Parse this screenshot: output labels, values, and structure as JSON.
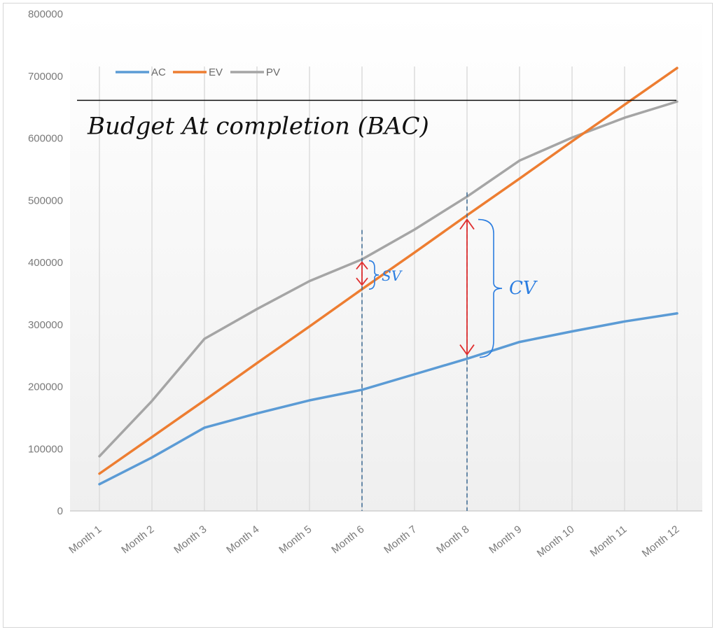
{
  "chart_data": {
    "type": "line",
    "title": "",
    "xlabel": "",
    "ylabel": "",
    "ylim": [
      0,
      800000
    ],
    "yticks": [
      0,
      100000,
      200000,
      300000,
      400000,
      500000,
      600000,
      700000,
      800000
    ],
    "categories": [
      "Month 1",
      "Month 2",
      "Month 3",
      "Month 4",
      "Month 5",
      "Month 6",
      "Month 7",
      "Month 8",
      "Month 9",
      "Month 10",
      "Month 11",
      "Month 12"
    ],
    "series": [
      {
        "name": "AC",
        "color": "#5b9bd5",
        "values": [
          43000,
          86000,
          134000,
          157000,
          178000,
          195000,
          220000,
          245000,
          272000,
          289000,
          305000,
          318000
        ]
      },
      {
        "name": "EV",
        "color": "#ed7d31",
        "values": [
          60000,
          119000,
          178000,
          238000,
          297000,
          357000,
          416000,
          476000,
          535000,
          595000,
          654000,
          713000
        ]
      },
      {
        "name": "PV",
        "color": "#a5a5a5",
        "values": [
          88000,
          177000,
          277000,
          325000,
          370000,
          405000,
          453000,
          506000,
          564000,
          601000,
          633000,
          659000
        ]
      }
    ],
    "grid": "vertical",
    "legend": "top-left",
    "annotations": {
      "bac_label": "Budget At completion (BAC)",
      "bac_value": 661000,
      "sv_label": "SV",
      "sv_category": "Month 6",
      "cv_label": "CV",
      "cv_category": "Month 8"
    }
  }
}
